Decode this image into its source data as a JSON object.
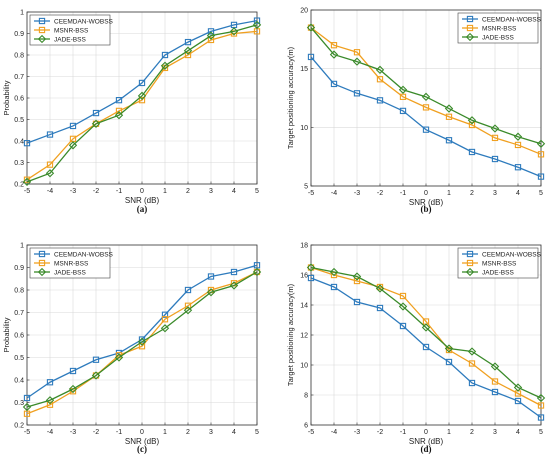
{
  "figure": {
    "panels": [
      {
        "caption": "(a)"
      },
      {
        "caption": "(b)"
      },
      {
        "caption": "(c)"
      },
      {
        "caption": "(d)"
      }
    ]
  },
  "colors": {
    "CEEMDAN-WOBSS": "#2e7bbd",
    "MSNR-BSS": "#f0a020",
    "JADE-BSS": "#3a8a2a"
  },
  "markers": {
    "CEEMDAN-WOBSS": "square",
    "MSNR-BSS": "square",
    "JADE-BSS": "diamond"
  },
  "chart_data": [
    {
      "type": "line",
      "caption": "(a)",
      "xlabel": "SNR (dB)",
      "ylabel": "Probability",
      "x": [
        -5,
        -4,
        -3,
        -2,
        -1,
        0,
        1,
        2,
        3,
        4,
        5
      ],
      "xticks": [
        -5,
        -4,
        -3,
        -2,
        -1,
        0,
        1,
        2,
        3,
        4,
        5
      ],
      "yticks": [
        0.2,
        0.3,
        0.4,
        0.5,
        0.6,
        0.7,
        0.8,
        0.9,
        1
      ],
      "ytick_labels": [
        "0.2",
        "0.3",
        "0.4",
        "0.5",
        "0.6",
        "0.7",
        "0.8",
        "0.9",
        "1"
      ],
      "xlim": [
        -5,
        5
      ],
      "ylim": [
        0.2,
        1.0
      ],
      "grid": true,
      "legend": "top-left",
      "series": [
        {
          "name": "CEEMDAN-WOBSS",
          "values": [
            0.39,
            0.43,
            0.47,
            0.53,
            0.59,
            0.67,
            0.8,
            0.86,
            0.91,
            0.94,
            0.96
          ]
        },
        {
          "name": "MSNR-BSS",
          "values": [
            0.22,
            0.29,
            0.41,
            0.48,
            0.54,
            0.59,
            0.74,
            0.8,
            0.87,
            0.9,
            0.91
          ]
        },
        {
          "name": "JADE-BSS",
          "values": [
            0.21,
            0.25,
            0.38,
            0.48,
            0.52,
            0.61,
            0.75,
            0.82,
            0.89,
            0.91,
            0.94
          ]
        }
      ]
    },
    {
      "type": "line",
      "caption": "(b)",
      "xlabel": "SNR (dB)",
      "ylabel": "Target positioning accuracy(m)",
      "x": [
        -5,
        -4,
        -3,
        -2,
        -1,
        0,
        1,
        2,
        3,
        4,
        5
      ],
      "xticks": [
        -5,
        -4,
        -3,
        -2,
        -1,
        0,
        1,
        2,
        3,
        4,
        5
      ],
      "yticks": [
        5,
        10,
        15,
        20
      ],
      "ytick_labels": [
        "5",
        "10",
        "15",
        "20"
      ],
      "xlim": [
        -5,
        5
      ],
      "ylim": [
        5,
        20
      ],
      "grid": true,
      "legend": "top-right",
      "series": [
        {
          "name": "CEEMDAN-WOBSS",
          "values": [
            16.0,
            13.7,
            12.9,
            12.3,
            11.4,
            9.8,
            8.9,
            7.9,
            7.3,
            6.6,
            5.8
          ]
        },
        {
          "name": "MSNR-BSS",
          "values": [
            18.5,
            17.0,
            16.4,
            14.1,
            12.6,
            11.7,
            10.9,
            10.2,
            9.1,
            8.5,
            7.7
          ]
        },
        {
          "name": "JADE-BSS",
          "values": [
            18.5,
            16.2,
            15.6,
            14.9,
            13.2,
            12.6,
            11.6,
            10.6,
            9.9,
            9.2,
            8.6
          ]
        }
      ]
    },
    {
      "type": "line",
      "caption": "(c)",
      "xlabel": "SNR (dB)",
      "ylabel": "Probability",
      "x": [
        -5,
        -4,
        -3,
        -2,
        -1,
        0,
        1,
        2,
        3,
        4,
        5
      ],
      "xticks": [
        -5,
        -4,
        -3,
        -2,
        -1,
        0,
        1,
        2,
        3,
        4,
        5
      ],
      "yticks": [
        0.2,
        0.3,
        0.4,
        0.5,
        0.6,
        0.7,
        0.8,
        0.9,
        1
      ],
      "ytick_labels": [
        "0.2",
        "0.3",
        "0.4",
        "0.5",
        "0.6",
        "0.7",
        "0.8",
        "0.9",
        "1"
      ],
      "xlim": [
        -5,
        5
      ],
      "ylim": [
        0.2,
        1.0
      ],
      "grid": true,
      "legend": "top-left",
      "series": [
        {
          "name": "CEEMDAN-WOBSS",
          "values": [
            0.32,
            0.39,
            0.44,
            0.49,
            0.52,
            0.58,
            0.69,
            0.8,
            0.86,
            0.88,
            0.91
          ]
        },
        {
          "name": "MSNR-BSS",
          "values": [
            0.25,
            0.29,
            0.35,
            0.42,
            0.51,
            0.55,
            0.67,
            0.73,
            0.8,
            0.83,
            0.88
          ]
        },
        {
          "name": "JADE-BSS",
          "values": [
            0.28,
            0.31,
            0.36,
            0.42,
            0.5,
            0.57,
            0.63,
            0.71,
            0.79,
            0.82,
            0.88
          ]
        }
      ]
    },
    {
      "type": "line",
      "caption": "(d)",
      "xlabel": "SNR (dB)",
      "ylabel": "Target positioning accuracy(m)",
      "x": [
        -5,
        -4,
        -3,
        -2,
        -1,
        0,
        1,
        2,
        3,
        4,
        5
      ],
      "xticks": [
        -5,
        -4,
        -3,
        -2,
        -1,
        0,
        1,
        2,
        3,
        4,
        5
      ],
      "yticks": [
        6,
        8,
        10,
        12,
        14,
        16,
        18
      ],
      "ytick_labels": [
        "6",
        "8",
        "10",
        "12",
        "14",
        "16",
        "18"
      ],
      "xlim": [
        -5,
        5
      ],
      "ylim": [
        6,
        18
      ],
      "grid": true,
      "legend": "top-right",
      "series": [
        {
          "name": "CEEMDAN-WOBSS",
          "values": [
            15.8,
            15.2,
            14.2,
            13.8,
            12.6,
            11.2,
            10.2,
            8.8,
            8.2,
            7.6,
            6.5
          ]
        },
        {
          "name": "MSNR-BSS",
          "values": [
            16.5,
            16.0,
            15.6,
            15.2,
            14.6,
            12.9,
            11.0,
            10.1,
            8.9,
            8.1,
            7.3
          ]
        },
        {
          "name": "JADE-BSS",
          "values": [
            16.5,
            16.2,
            15.9,
            15.1,
            13.9,
            12.5,
            11.1,
            10.9,
            9.9,
            8.5,
            7.8
          ]
        }
      ]
    }
  ]
}
